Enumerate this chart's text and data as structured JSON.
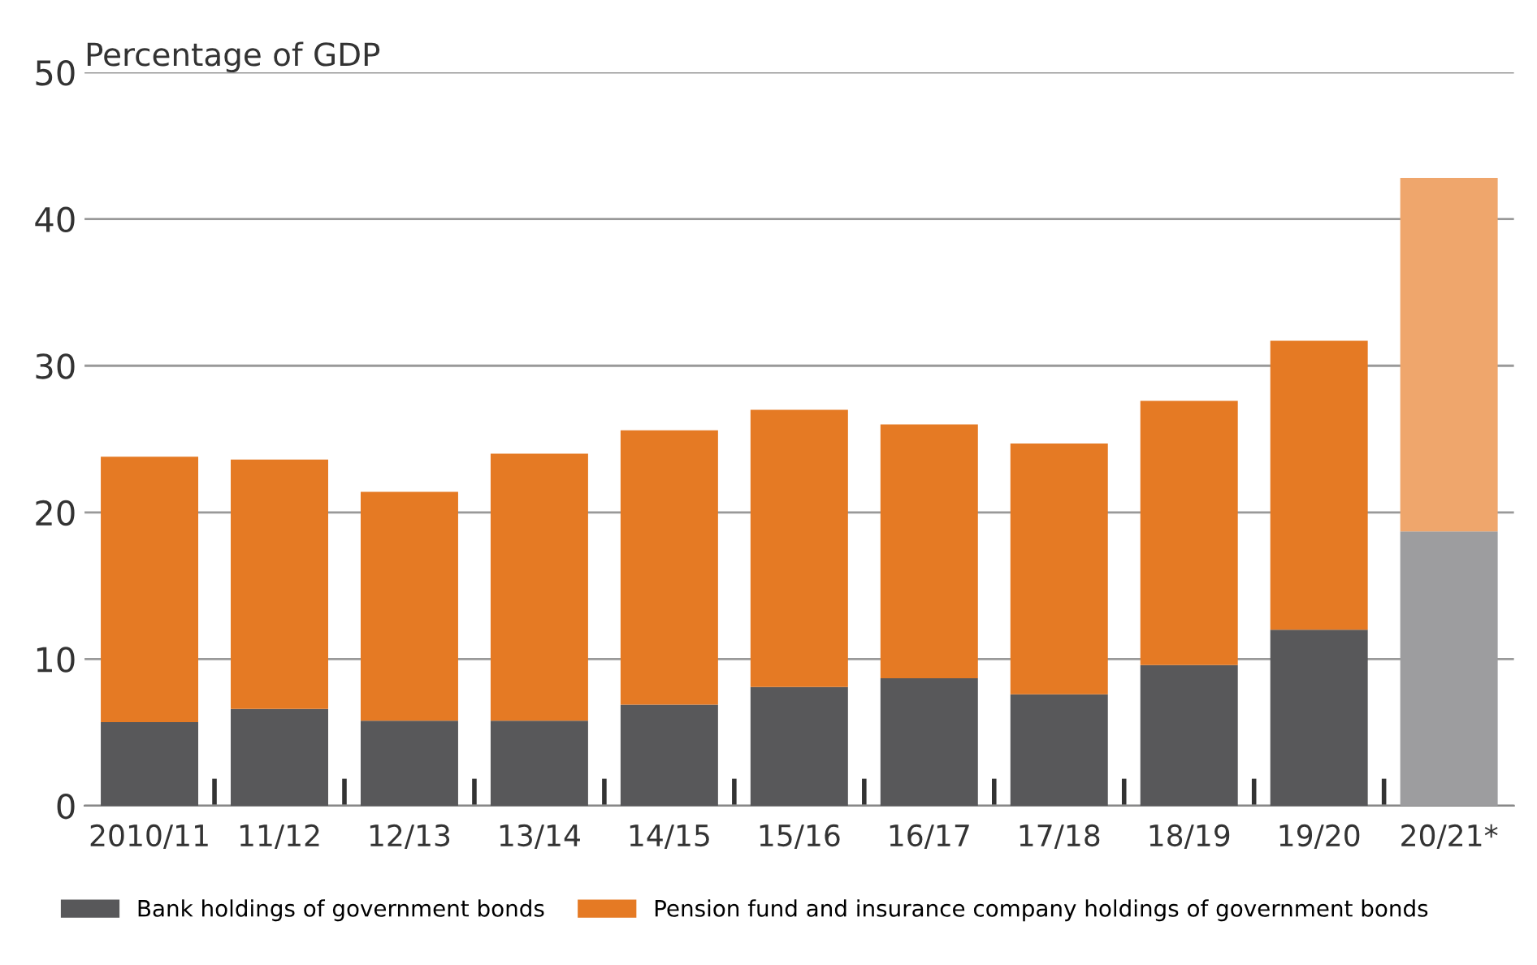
{
  "chart_data": {
    "type": "bar",
    "stacked": true,
    "ylabel": "Percentage of GDP",
    "categories": [
      "2010/11",
      "11/12",
      "12/13",
      "13/14",
      "14/15",
      "15/16",
      "16/17",
      "17/18",
      "18/19",
      "19/20",
      "20/21*"
    ],
    "series": [
      {
        "name": "Bank holdings of government bonds",
        "color": "#58585a",
        "colors": [
          "#58585a",
          "#58585a",
          "#58585a",
          "#58585a",
          "#58585a",
          "#58585a",
          "#58585a",
          "#58585a",
          "#58585a",
          "#58585a",
          "#9d9d9f"
        ],
        "values": [
          5.7,
          6.6,
          5.8,
          5.8,
          6.9,
          8.1,
          8.7,
          7.6,
          9.6,
          12.0,
          18.7
        ]
      },
      {
        "name": "Pension fund and insurance company holdings of government bonds",
        "color": "#e57a24",
        "colors": [
          "#e57a24",
          "#e57a24",
          "#e57a24",
          "#e57a24",
          "#e57a24",
          "#e57a24",
          "#e57a24",
          "#e57a24",
          "#e57a24",
          "#e57a24",
          "#efa66c"
        ],
        "values": [
          18.1,
          17.0,
          15.6,
          18.2,
          18.7,
          18.9,
          17.3,
          17.1,
          18.0,
          19.7,
          24.1
        ]
      }
    ],
    "ylim": [
      0,
      50
    ],
    "yticks": [
      0,
      10,
      20,
      30,
      40,
      50
    ],
    "grid": "y",
    "legend": "bottom"
  }
}
